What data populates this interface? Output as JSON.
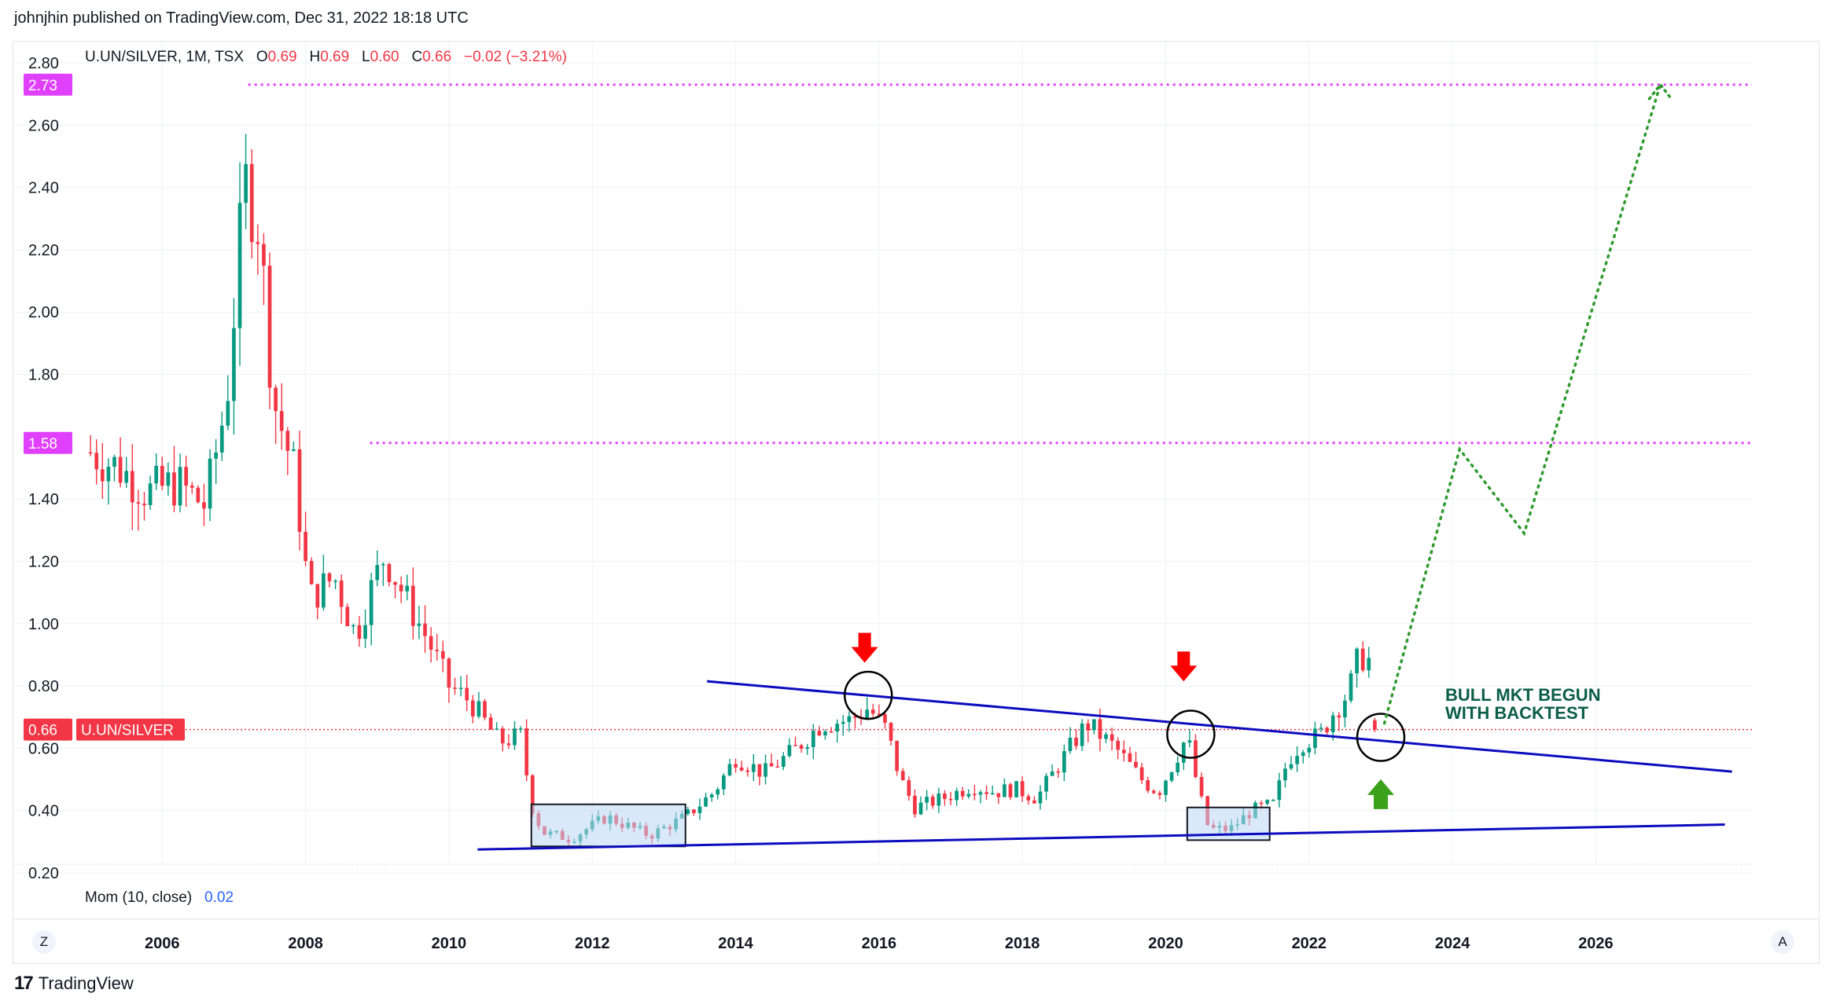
{
  "header": {
    "published_by": "johnjhin published on TradingView.com, Dec 31, 2022 18:18 UTC"
  },
  "legend": {
    "symbol": "U.UN/SILVER, 1M, TSX",
    "open_label": "O",
    "open": "0.69",
    "high_label": "H",
    "high": "0.69",
    "low_label": "L",
    "low": "0.60",
    "close_label": "C",
    "close": "0.66",
    "change": "−0.02 (−3.21%)"
  },
  "indicator": {
    "label": "Mom (10, close)",
    "value": "0.02"
  },
  "price_tags": {
    "current_value": "0.66",
    "current_symbol": "U.UN/SILVER",
    "level_high": "2.73",
    "level_mid": "1.58"
  },
  "annotation": {
    "line1": "BULL MKT BEGUN",
    "line2": "WITH BACKTEST"
  },
  "footer": {
    "logo_mark": "17",
    "brand": "TradingView",
    "zoom_left": "Z",
    "auto_right": "A"
  },
  "colors": {
    "up": "#089981",
    "down": "#f23645",
    "magenta": "#e040fb",
    "trendline": "#0b0bbf",
    "projection": "#2e9a2e",
    "annotation_text": "#0b5e45",
    "box_fill": "#bcd7f5"
  },
  "chart_data": {
    "type": "candlestick",
    "symbol": "U.UN/SILVER",
    "interval": "1M",
    "exchange": "TSX",
    "ylim": [
      0.2,
      2.8
    ],
    "y_ticks": [
      "2.80",
      "2.60",
      "2.40",
      "2.20",
      "2.00",
      "1.80",
      "1.58",
      "1.40",
      "1.20",
      "1.00",
      "0.80",
      "0.66",
      "0.60",
      "0.40",
      "0.20"
    ],
    "x_ticks": [
      "2006",
      "2008",
      "2010",
      "2012",
      "2014",
      "2016",
      "2018",
      "2020",
      "2022",
      "2024",
      "2026"
    ],
    "x_range": [
      2004.9,
      2028.2
    ],
    "anchors": [
      [
        2005.0,
        1.55
      ],
      [
        2005.4,
        1.5
      ],
      [
        2005.8,
        1.42
      ],
      [
        2006.2,
        1.45
      ],
      [
        2006.6,
        1.38
      ],
      [
        2006.9,
        1.72
      ],
      [
        2007.15,
        2.42
      ],
      [
        2007.35,
        2.28
      ],
      [
        2007.55,
        1.72
      ],
      [
        2007.85,
        1.48
      ],
      [
        2008.05,
        1.08
      ],
      [
        2008.4,
        1.15
      ],
      [
        2008.7,
        0.96
      ],
      [
        2008.9,
        1.1
      ],
      [
        2009.1,
        1.22
      ],
      [
        2009.4,
        1.08
      ],
      [
        2009.7,
        0.95
      ],
      [
        2010.0,
        0.8
      ],
      [
        2010.3,
        0.75
      ],
      [
        2010.7,
        0.62
      ],
      [
        2011.0,
        0.64
      ],
      [
        2011.15,
        0.42
      ],
      [
        2011.3,
        0.33
      ],
      [
        2011.7,
        0.31
      ],
      [
        2012.2,
        0.38
      ],
      [
        2012.8,
        0.32
      ],
      [
        2013.3,
        0.38
      ],
      [
        2013.7,
        0.46
      ],
      [
        2014.0,
        0.57
      ],
      [
        2014.4,
        0.52
      ],
      [
        2014.8,
        0.59
      ],
      [
        2015.2,
        0.68
      ],
      [
        2015.6,
        0.69
      ],
      [
        2015.85,
        0.73
      ],
      [
        2016.1,
        0.66
      ],
      [
        2016.3,
        0.5
      ],
      [
        2016.5,
        0.41
      ],
      [
        2016.9,
        0.44
      ],
      [
        2017.3,
        0.48
      ],
      [
        2017.6,
        0.46
      ],
      [
        2017.9,
        0.47
      ],
      [
        2018.2,
        0.44
      ],
      [
        2018.6,
        0.58
      ],
      [
        2018.9,
        0.68
      ],
      [
        2019.3,
        0.6
      ],
      [
        2019.7,
        0.49
      ],
      [
        2019.9,
        0.46
      ],
      [
        2020.1,
        0.55
      ],
      [
        2020.3,
        0.64
      ],
      [
        2020.45,
        0.47
      ],
      [
        2020.6,
        0.34
      ],
      [
        2020.9,
        0.34
      ],
      [
        2021.2,
        0.4
      ],
      [
        2021.5,
        0.42
      ],
      [
        2021.7,
        0.56
      ],
      [
        2021.9,
        0.62
      ],
      [
        2022.15,
        0.64
      ],
      [
        2022.35,
        0.72
      ],
      [
        2022.55,
        0.78
      ],
      [
        2022.7,
        0.9
      ],
      [
        2022.85,
        0.88
      ],
      [
        2022.95,
        0.66
      ]
    ],
    "horizontal_levels": [
      {
        "value": 2.73,
        "from_x": 2007.2,
        "style": "dotted",
        "color": "#e040fb"
      },
      {
        "value": 1.58,
        "from_x": 2008.9,
        "style": "dotted",
        "color": "#e040fb"
      },
      {
        "value": 0.66,
        "from_x": 2004.9,
        "style": "dotted",
        "color": "#f23645"
      }
    ],
    "trendlines": [
      {
        "from": [
          2013.6,
          0.815
        ],
        "to": [
          2027.9,
          0.525
        ],
        "color": "#0b0bbf"
      },
      {
        "from": [
          2010.4,
          0.275
        ],
        "to": [
          2027.8,
          0.355
        ],
        "color": "#0b0bbf"
      }
    ],
    "boxes": [
      {
        "x": [
          2011.15,
          2013.3
        ],
        "y": [
          0.285,
          0.42
        ]
      },
      {
        "x": [
          2020.3,
          2021.45
        ],
        "y": [
          0.305,
          0.41
        ]
      }
    ],
    "circles": [
      {
        "x": 2015.85,
        "y": 0.77
      },
      {
        "x": 2020.35,
        "y": 0.645
      },
      {
        "x": 2023.0,
        "y": 0.635
      }
    ],
    "arrows": [
      {
        "x": 2015.8,
        "y": 0.92,
        "direction": "down",
        "color": "#ff0000"
      },
      {
        "x": 2020.25,
        "y": 0.86,
        "direction": "down",
        "color": "#ff0000"
      },
      {
        "x": 2023.0,
        "y": 0.45,
        "direction": "up",
        "color": "#3aa11a"
      }
    ],
    "projection": [
      [
        2023.05,
        0.68
      ],
      [
        2024.1,
        1.56
      ],
      [
        2025.0,
        1.29
      ],
      [
        2026.9,
        2.73
      ]
    ]
  }
}
